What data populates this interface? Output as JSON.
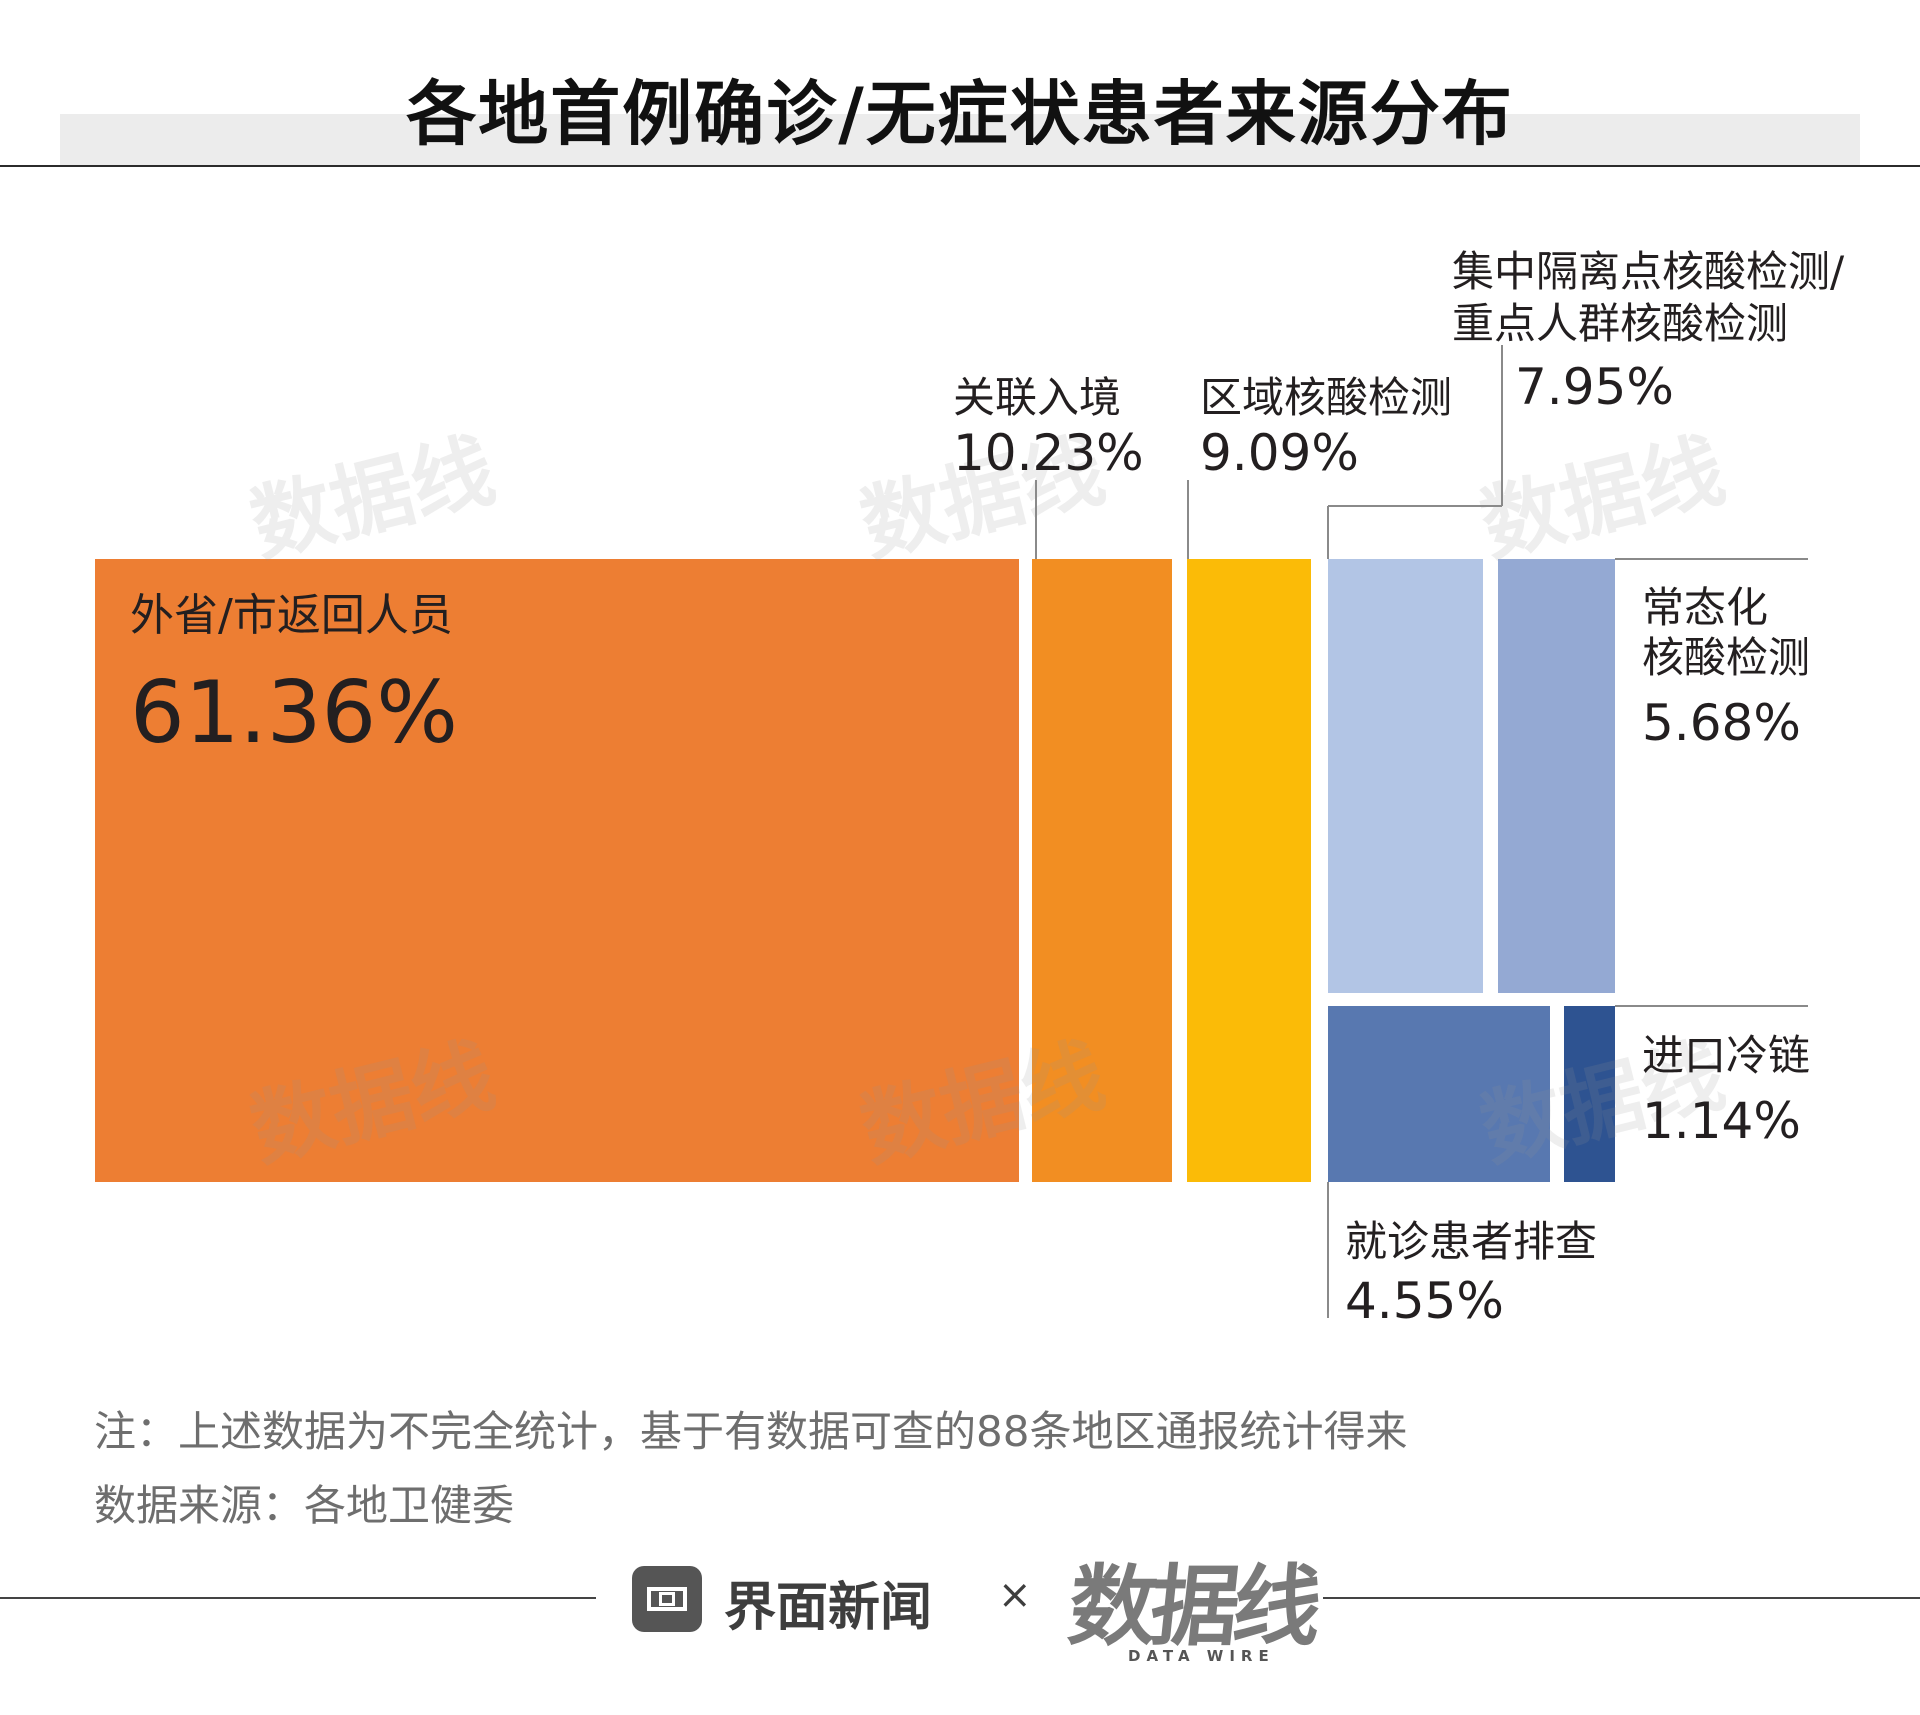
{
  "title": "各地首例确诊/无症状患者来源分布",
  "chart_data": {
    "type": "treemap",
    "title": "各地首例确诊/无症状患者来源分布",
    "unit": "%",
    "items": [
      {
        "label": "外省/市返回人员",
        "value": 61.36,
        "value_label": "61.36%",
        "color": "#ed7e33"
      },
      {
        "label": "关联入境",
        "value": 10.23,
        "value_label": "10.23%",
        "color": "#f28e22"
      },
      {
        "label": "区域核酸检测",
        "value": 9.09,
        "value_label": "9.09%",
        "color": "#fbbb07"
      },
      {
        "label": "集中隔离点核酸检测/重点人群核酸检测",
        "label_lines": [
          "集中隔离点核酸检测/",
          "重点人群核酸检测"
        ],
        "value": 7.95,
        "value_label": "7.95%",
        "color": "#b2c5e5"
      },
      {
        "label": "常态化核酸检测",
        "label_lines": [
          "常态化",
          "核酸检测"
        ],
        "value": 5.68,
        "value_label": "5.68%",
        "color": "#94a9d3"
      },
      {
        "label": "就诊患者排查",
        "value": 4.55,
        "value_label": "4.55%",
        "color": "#5878b0"
      },
      {
        "label": "进口冷链",
        "value": 1.14,
        "value_label": "1.14%",
        "color": "#2e5391"
      }
    ]
  },
  "notes": {
    "note": "注：上述数据为不完全统计，基于有数据可查的88条地区通报统计得来",
    "source": "数据来源：各地卫健委"
  },
  "footer": {
    "brand": "界面新闻",
    "times": "×",
    "logo_text": "数据线",
    "logo_sub": "DATA WIRE"
  },
  "watermark": "数据线"
}
